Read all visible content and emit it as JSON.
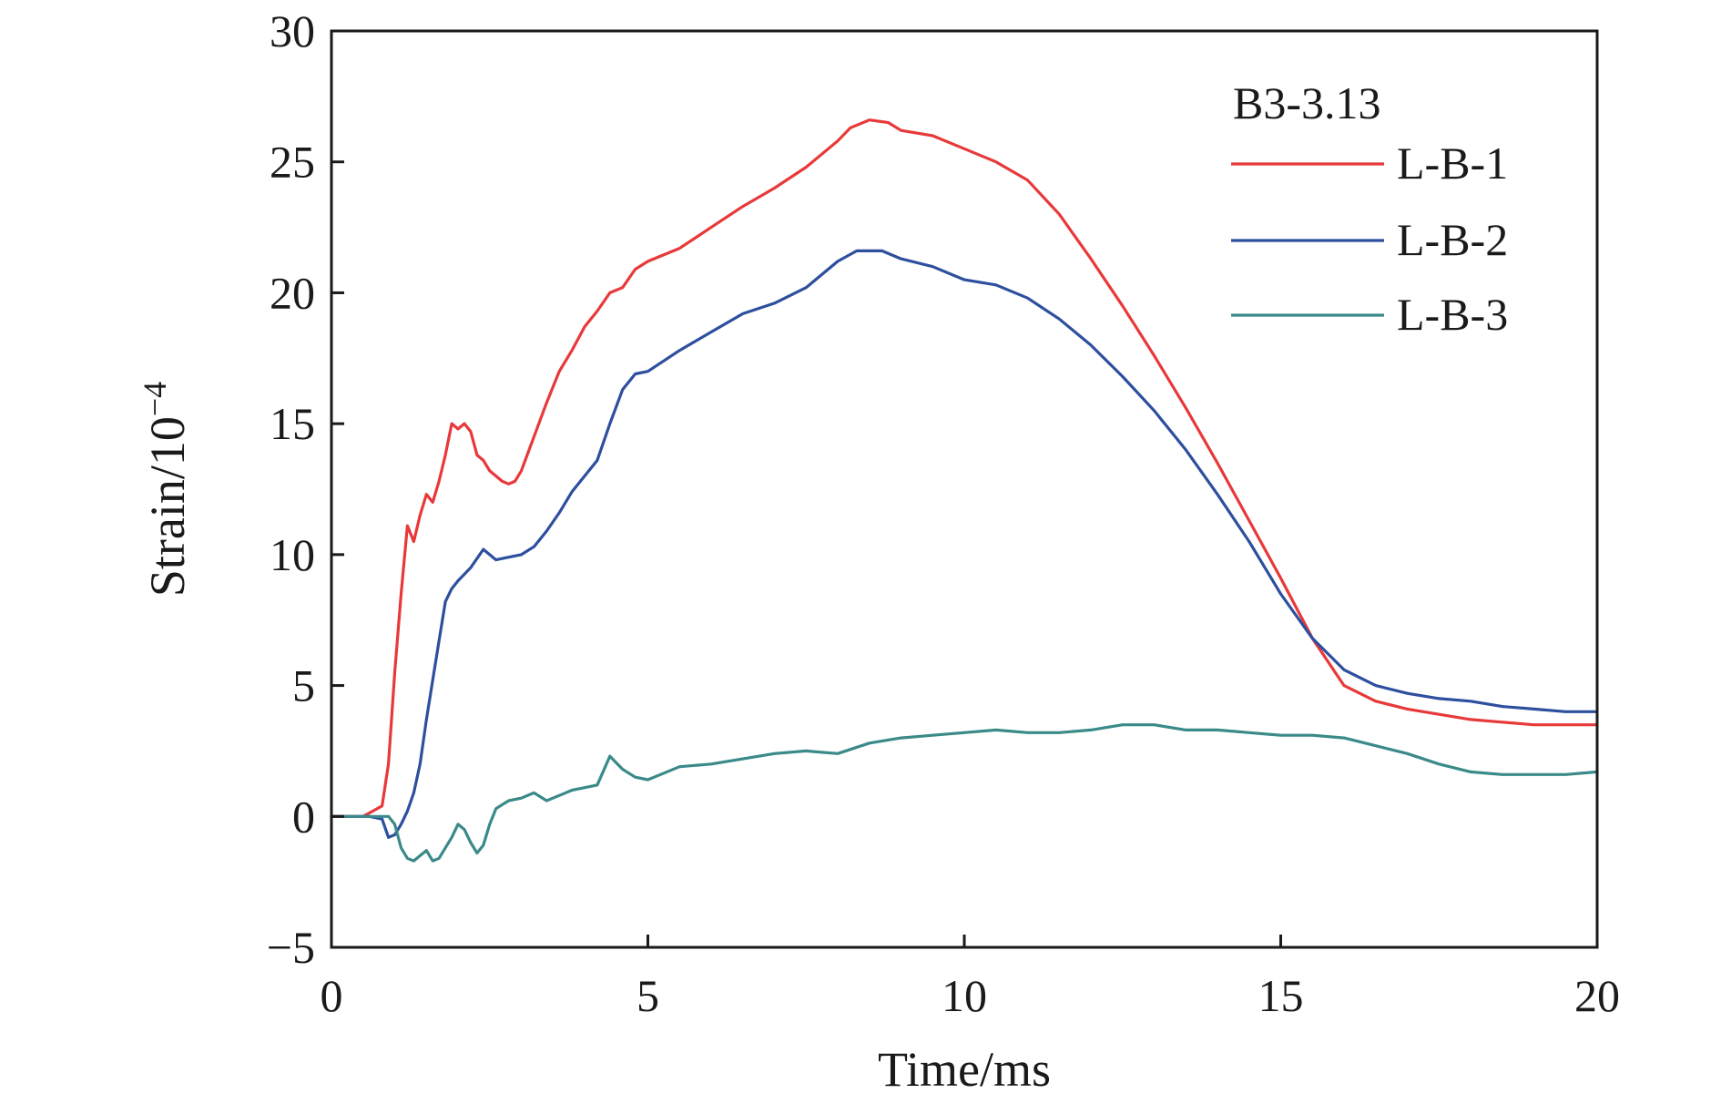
{
  "chart_data": {
    "type": "line",
    "xlabel": "Time/ms",
    "ylabel_base": "Strain/10",
    "ylabel_exp": "−4",
    "xlim": [
      0,
      20
    ],
    "ylim": [
      -5,
      30
    ],
    "xticks": [
      0,
      5,
      10,
      15,
      20
    ],
    "yticks": [
      -5,
      0,
      5,
      10,
      15,
      20,
      25,
      30
    ],
    "xtick_labels": [
      "0",
      "5",
      "10",
      "15",
      "20"
    ],
    "ytick_labels": [
      "−5",
      "0",
      "5",
      "10",
      "15",
      "20",
      "25",
      "30"
    ],
    "grid": false,
    "legend_title": "B3-3.13",
    "legend_position": "top-right",
    "series": [
      {
        "name": "L-B-1",
        "color": "#e8393a",
        "x": [
          0,
          0.5,
          0.8,
          0.9,
          1.0,
          1.1,
          1.2,
          1.3,
          1.4,
          1.5,
          1.6,
          1.7,
          1.8,
          1.9,
          2.0,
          2.1,
          2.2,
          2.3,
          2.4,
          2.5,
          2.6,
          2.7,
          2.8,
          2.9,
          3.0,
          3.2,
          3.4,
          3.6,
          3.8,
          4.0,
          4.2,
          4.4,
          4.6,
          4.8,
          5.0,
          5.5,
          6.0,
          6.5,
          7.0,
          7.5,
          8.0,
          8.2,
          8.5,
          8.8,
          9.0,
          9.5,
          10.0,
          10.5,
          11.0,
          11.5,
          12.0,
          12.5,
          13.0,
          13.5,
          14.0,
          14.5,
          15.0,
          15.5,
          16.0,
          16.5,
          17.0,
          17.5,
          18.0,
          18.5,
          19.0,
          19.5,
          20.0
        ],
        "values": [
          0,
          0,
          0.4,
          2.0,
          5.5,
          8.5,
          11.1,
          10.5,
          11.5,
          12.3,
          12.0,
          12.8,
          13.8,
          15.0,
          14.8,
          15.0,
          14.7,
          13.8,
          13.6,
          13.2,
          13.0,
          12.8,
          12.7,
          12.8,
          13.2,
          14.5,
          15.8,
          17.0,
          17.8,
          18.7,
          19.3,
          20.0,
          20.2,
          20.9,
          21.2,
          21.7,
          22.5,
          23.3,
          24.0,
          24.8,
          25.8,
          26.3,
          26.6,
          26.5,
          26.2,
          26.0,
          25.5,
          25.0,
          24.3,
          23.0,
          21.3,
          19.5,
          17.6,
          15.6,
          13.5,
          11.3,
          9.1,
          6.8,
          5.0,
          4.4,
          4.1,
          3.9,
          3.7,
          3.6,
          3.5,
          3.5,
          3.5
        ]
      },
      {
        "name": "L-B-2",
        "color": "#2d4f9e",
        "x": [
          0,
          0.6,
          0.8,
          0.9,
          1.0,
          1.1,
          1.2,
          1.3,
          1.4,
          1.5,
          1.6,
          1.7,
          1.8,
          1.9,
          2.0,
          2.2,
          2.4,
          2.6,
          2.8,
          3.0,
          3.2,
          3.4,
          3.6,
          3.8,
          4.0,
          4.2,
          4.4,
          4.6,
          4.8,
          5.0,
          5.5,
          6.0,
          6.5,
          7.0,
          7.5,
          8.0,
          8.3,
          8.7,
          9.0,
          9.5,
          10.0,
          10.5,
          11.0,
          11.5,
          12.0,
          12.5,
          13.0,
          13.5,
          14.0,
          14.5,
          15.0,
          15.5,
          16.0,
          16.5,
          17.0,
          17.5,
          18.0,
          18.5,
          19.0,
          19.5,
          20.0
        ],
        "values": [
          0,
          0,
          -0.1,
          -0.8,
          -0.7,
          -0.3,
          0.2,
          0.9,
          2.0,
          3.7,
          5.2,
          6.7,
          8.2,
          8.7,
          9.0,
          9.5,
          10.2,
          9.8,
          9.9,
          10.0,
          10.3,
          10.9,
          11.6,
          12.4,
          13.0,
          13.6,
          15.0,
          16.3,
          16.9,
          17.0,
          17.8,
          18.5,
          19.2,
          19.6,
          20.2,
          21.2,
          21.6,
          21.6,
          21.3,
          21.0,
          20.5,
          20.3,
          19.8,
          19.0,
          18.0,
          16.8,
          15.5,
          14.0,
          12.3,
          10.5,
          8.5,
          6.8,
          5.6,
          5.0,
          4.7,
          4.5,
          4.4,
          4.2,
          4.1,
          4.0,
          4.0
        ]
      },
      {
        "name": "L-B-3",
        "color": "#3a8a89",
        "x": [
          0,
          0.8,
          0.9,
          1.0,
          1.1,
          1.2,
          1.3,
          1.4,
          1.5,
          1.6,
          1.7,
          1.8,
          1.9,
          2.0,
          2.1,
          2.2,
          2.3,
          2.4,
          2.5,
          2.6,
          2.8,
          3.0,
          3.2,
          3.4,
          3.6,
          3.8,
          4.0,
          4.2,
          4.4,
          4.6,
          4.8,
          5.0,
          5.2,
          5.5,
          6.0,
          6.5,
          7.0,
          7.5,
          8.0,
          8.5,
          9.0,
          9.5,
          10.0,
          10.5,
          11.0,
          11.5,
          12.0,
          12.5,
          13.0,
          13.5,
          14.0,
          14.5,
          15.0,
          15.5,
          16.0,
          16.5,
          17.0,
          17.5,
          18.0,
          18.5,
          19.0,
          19.5,
          20.0
        ],
        "values": [
          0,
          0,
          0,
          -0.3,
          -1.2,
          -1.6,
          -1.7,
          -1.5,
          -1.3,
          -1.7,
          -1.6,
          -1.2,
          -0.8,
          -0.3,
          -0.5,
          -1.0,
          -1.4,
          -1.1,
          -0.3,
          0.3,
          0.6,
          0.7,
          0.9,
          0.6,
          0.8,
          1.0,
          1.1,
          1.2,
          2.3,
          1.8,
          1.5,
          1.4,
          1.6,
          1.9,
          2.0,
          2.2,
          2.4,
          2.5,
          2.4,
          2.8,
          3.0,
          3.1,
          3.2,
          3.3,
          3.2,
          3.2,
          3.3,
          3.5,
          3.5,
          3.3,
          3.3,
          3.2,
          3.1,
          3.1,
          3.0,
          2.7,
          2.4,
          2.0,
          1.7,
          1.6,
          1.6,
          1.6,
          1.7
        ]
      }
    ]
  }
}
